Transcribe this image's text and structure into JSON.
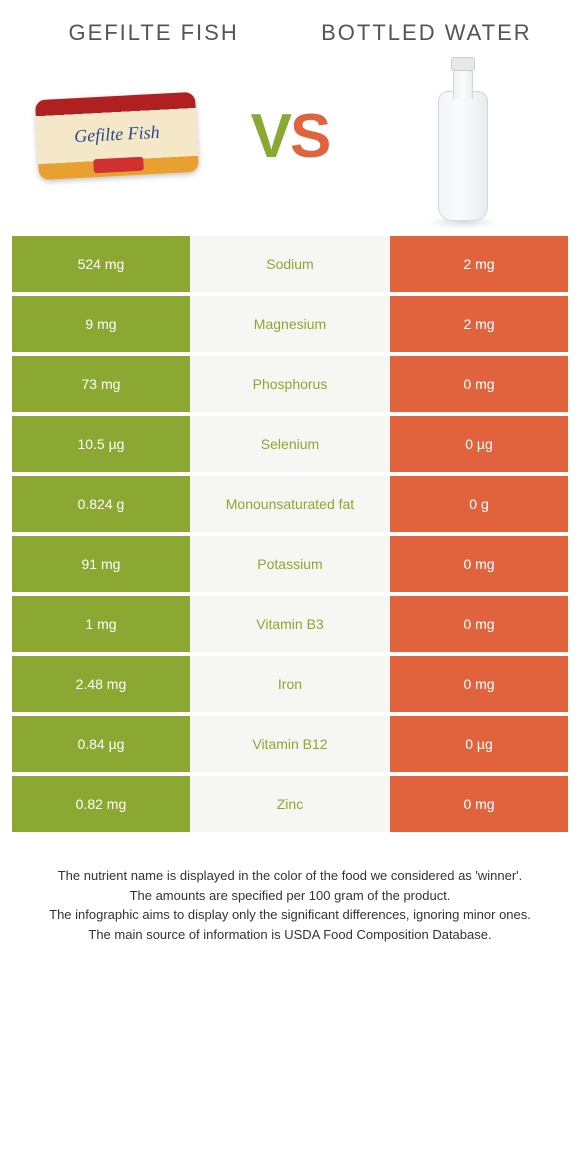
{
  "header": {
    "left_title": "Gefilte fish",
    "right_title": "Bottled water",
    "vs_v": "V",
    "vs_s": "S"
  },
  "colors": {
    "green": "#8aa832",
    "orange": "#e1633e",
    "mid_bg": "#f6f6f2",
    "text": "#333333"
  },
  "rows": [
    {
      "left": "524 mg",
      "name": "Sodium",
      "right": "2 mg",
      "winner": "green"
    },
    {
      "left": "9 mg",
      "name": "Magnesium",
      "right": "2 mg",
      "winner": "green"
    },
    {
      "left": "73 mg",
      "name": "Phosphorus",
      "right": "0 mg",
      "winner": "green"
    },
    {
      "left": "10.5 µg",
      "name": "Selenium",
      "right": "0 µg",
      "winner": "green"
    },
    {
      "left": "0.824 g",
      "name": "Monounsaturated fat",
      "right": "0 g",
      "winner": "green"
    },
    {
      "left": "91 mg",
      "name": "Potassium",
      "right": "0 mg",
      "winner": "green"
    },
    {
      "left": "1 mg",
      "name": "Vitamin B3",
      "right": "0 mg",
      "winner": "green"
    },
    {
      "left": "2.48 mg",
      "name": "Iron",
      "right": "0 mg",
      "winner": "green"
    },
    {
      "left": "0.84 µg",
      "name": "Vitamin B12",
      "right": "0 µg",
      "winner": "green"
    },
    {
      "left": "0.82 mg",
      "name": "Zinc",
      "right": "0 mg",
      "winner": "green"
    }
  ],
  "footer": {
    "line1": "The nutrient name is displayed in the color of the food we considered as 'winner'.",
    "line2": "The amounts are specified per 100 gram of the product.",
    "line3": "The infographic aims to display only the significant differences, ignoring minor ones.",
    "line4": "The main source of information is USDA Food Composition Database."
  }
}
